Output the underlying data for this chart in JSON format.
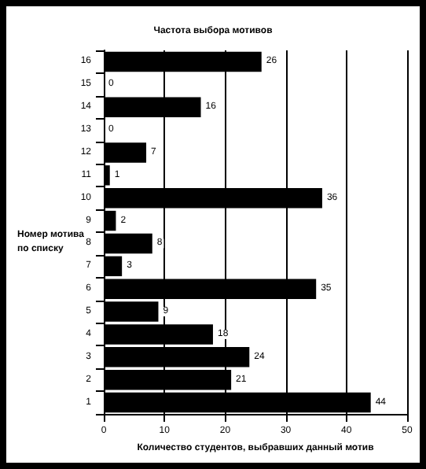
{
  "chart_data": {
    "type": "bar",
    "orientation": "horizontal",
    "title": "Частота выбора мотивов",
    "xlabel": "Количество студентов, выбравших данный мотив",
    "ylabel": "Номер мотива\nпо списку",
    "categories": [
      "16",
      "15",
      "14",
      "13",
      "12",
      "11",
      "10",
      "9",
      "8",
      "7",
      "6",
      "5",
      "4",
      "3",
      "2",
      "1"
    ],
    "values": [
      26,
      0,
      16,
      0,
      7,
      1,
      36,
      2,
      8,
      3,
      35,
      9,
      18,
      24,
      21,
      44
    ],
    "color": "#000000",
    "xlim": [
      0,
      50
    ],
    "xticks": [
      0,
      10,
      20,
      30,
      40,
      50
    ],
    "grid": "x",
    "data_labels": true
  }
}
